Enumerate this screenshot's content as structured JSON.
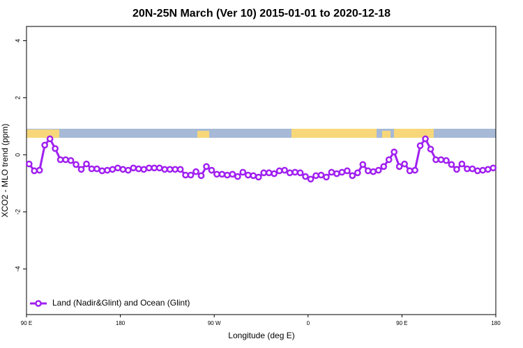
{
  "chart_data": {
    "type": "line",
    "title": "20N-25N March (Ver 10)   2015-01-01 to 2020-12-18",
    "x_label": "Longitude (deg E)",
    "y_label": "XCO2 - MLO trend (ppm)",
    "x": [
      92.5,
      97.5,
      102.5,
      107.5,
      112.5,
      117.5,
      122.5,
      127.5,
      132.5,
      137.5,
      142.5,
      147.5,
      152.5,
      157.5,
      162.5,
      167.5,
      172.5,
      177.5,
      182.5,
      187.5,
      192.5,
      197.5,
      202.5,
      207.5,
      212.5,
      217.5,
      222.5,
      227.5,
      232.5,
      237.5,
      242.5,
      247.5,
      252.5,
      257.5,
      262.5,
      267.5,
      272.5,
      277.5,
      282.5,
      287.5,
      292.5,
      297.5,
      302.5,
      307.5,
      312.5,
      317.5,
      322.5,
      327.5,
      332.5,
      337.5,
      342.5,
      347.5,
      352.5,
      357.5,
      362.5,
      367.5,
      372.5,
      377.5,
      382.5,
      387.5,
      392.5,
      397.5,
      402.5,
      407.5,
      412.5,
      417.5,
      422.5,
      427.5,
      432.5,
      437.5,
      442.5,
      447.5,
      452.5,
      457.5,
      462.5,
      467.5,
      472.5,
      477.5,
      482.5,
      487.5,
      492.5,
      497.5,
      502.5,
      507.5,
      512.5,
      517.5,
      522.5,
      527.5,
      532.5,
      537.5
    ],
    "series": [
      {
        "name": "Land (Nadir&Glint) and Ocean (Glint)",
        "color": "#a020f0",
        "values": [
          -0.32,
          -0.56,
          -0.54,
          0.34,
          0.56,
          0.22,
          -0.17,
          -0.17,
          -0.2,
          -0.34,
          -0.51,
          -0.32,
          -0.49,
          -0.49,
          -0.56,
          -0.54,
          -0.51,
          -0.46,
          -0.51,
          -0.54,
          -0.46,
          -0.49,
          -0.51,
          -0.46,
          -0.46,
          -0.46,
          -0.51,
          -0.51,
          -0.51,
          -0.51,
          -0.71,
          -0.71,
          -0.59,
          -0.73,
          -0.41,
          -0.54,
          -0.68,
          -0.68,
          -0.71,
          -0.68,
          -0.76,
          -0.61,
          -0.71,
          -0.73,
          -0.78,
          -0.63,
          -0.63,
          -0.66,
          -0.56,
          -0.54,
          -0.63,
          -0.61,
          -0.63,
          -0.76,
          -0.85,
          -0.73,
          -0.71,
          -0.78,
          -0.61,
          -0.66,
          -0.61,
          -0.56,
          -0.73,
          -0.63,
          -0.34,
          -0.56,
          -0.59,
          -0.54,
          -0.41,
          -0.17,
          0.1,
          -0.41,
          -0.32,
          -0.56,
          -0.54,
          0.32,
          0.56,
          0.2,
          -0.17,
          -0.17,
          -0.2,
          -0.34,
          -0.51,
          -0.32,
          -0.49,
          -0.49,
          -0.56,
          -0.54,
          -0.51,
          -0.46
        ]
      }
    ],
    "xlim": [
      90,
      540
    ],
    "xticks": [
      {
        "value": 90,
        "label": "90 E"
      },
      {
        "value": 180,
        "label": "180"
      },
      {
        "value": 270,
        "label": "90 W"
      },
      {
        "value": 360,
        "label": "0"
      },
      {
        "value": 450,
        "label": "90 E"
      },
      {
        "value": 540,
        "label": "180"
      }
    ],
    "ylim": [
      -5.6,
      4.5
    ],
    "yticks": [
      -4,
      -2,
      0,
      2,
      4
    ],
    "legend": "bottom-left"
  }
}
